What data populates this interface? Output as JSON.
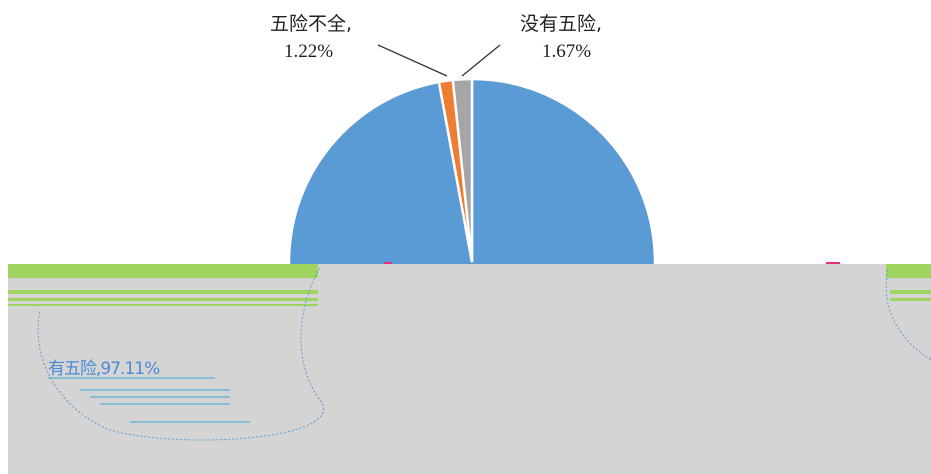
{
  "chart_data": {
    "type": "pie",
    "slices": [
      {
        "label": "有五险",
        "value": 97.11,
        "display": "有五险,97.11%",
        "color": "#5b9bd5"
      },
      {
        "label": "五险不全",
        "value": 1.22,
        "display_name": "五险不全,",
        "display_value": "1.22%",
        "color": "#ed7d31"
      },
      {
        "label": "没有五险",
        "value": 1.67,
        "display_name": "没有五险,",
        "display_value": "1.67%",
        "color": "#a5a5a5"
      }
    ],
    "start_angle_deg": 0,
    "direction": "clockwise"
  },
  "colors": {
    "glitch_gray": "#d4d4d4",
    "glitch_green": "#9fd460",
    "leader_line": "#333333"
  }
}
